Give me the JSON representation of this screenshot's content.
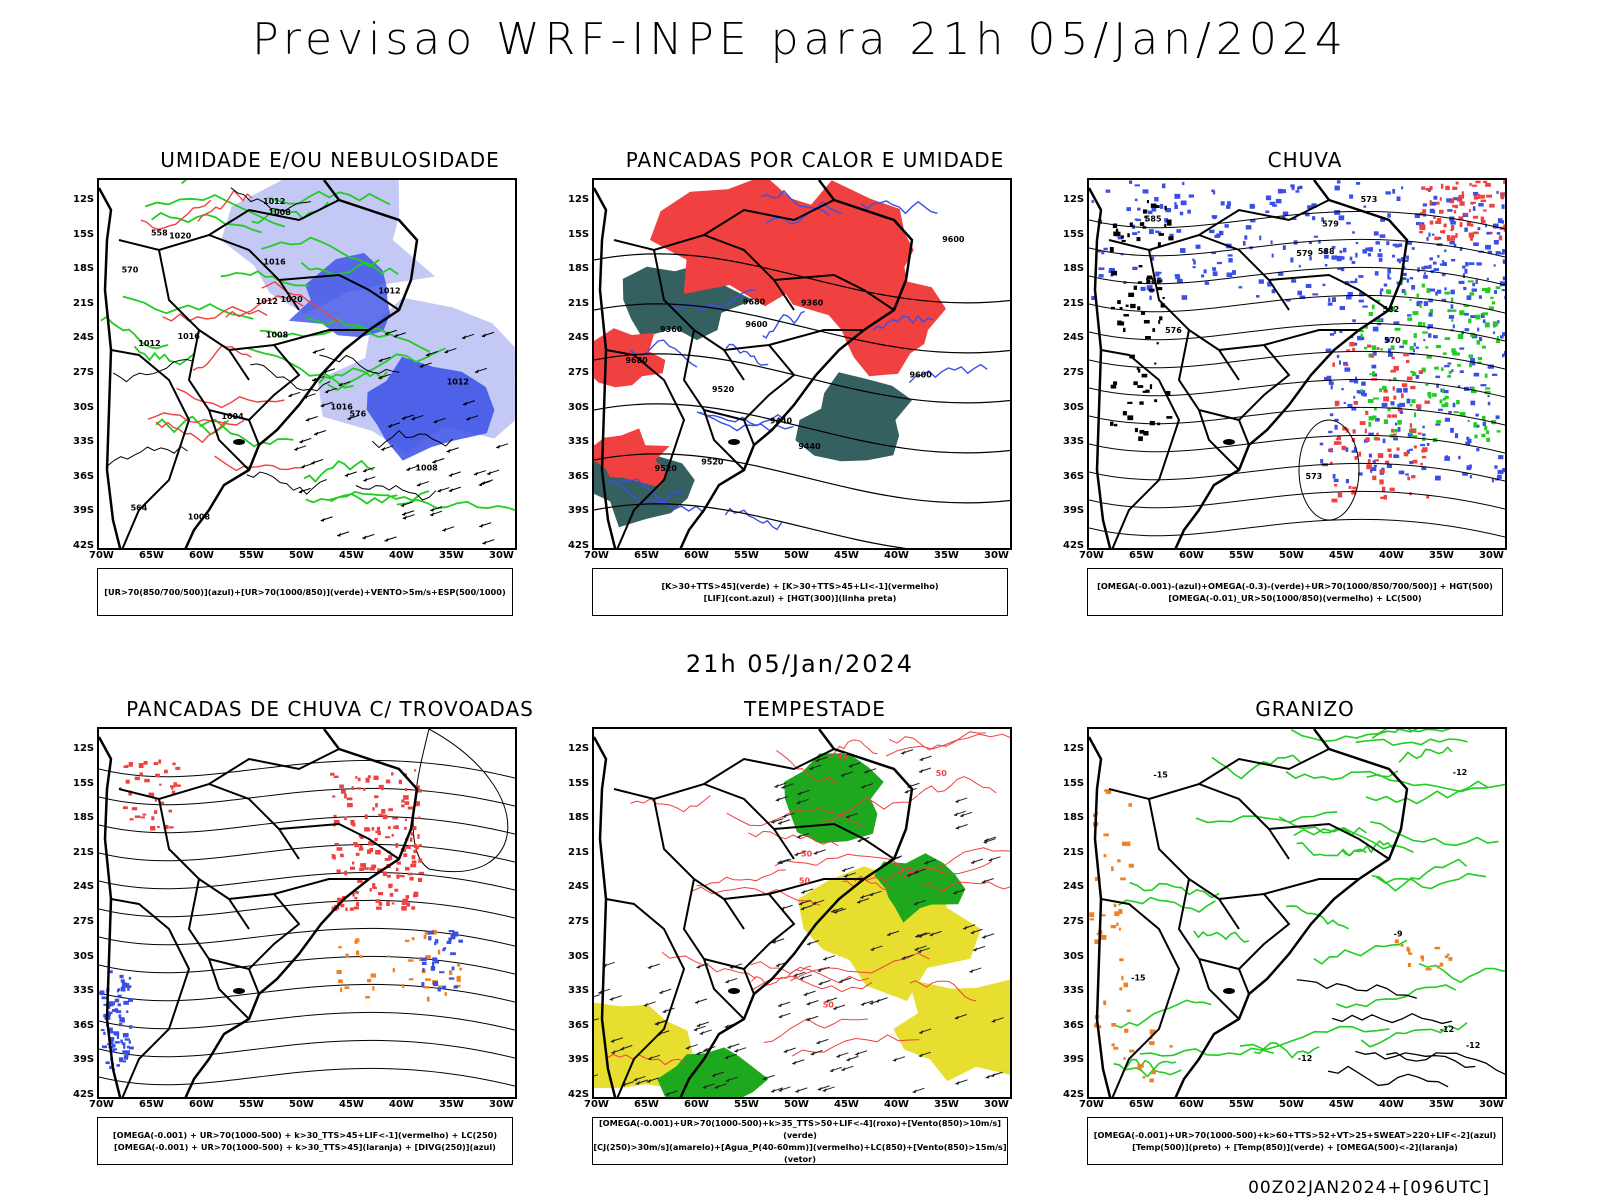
{
  "main_title": "Previsao WRF-INPE  para 21h 05/Jan/2024",
  "mid_title": "21h 05/Jan/2024",
  "footer": "00Z02JAN2024+[096UTC]",
  "lat_labels": [
    "12S",
    "15S",
    "18S",
    "21S",
    "24S",
    "27S",
    "30S",
    "33S",
    "36S",
    "39S",
    "42S"
  ],
  "lon_labels": [
    "70W",
    "65W",
    "60W",
    "55W",
    "50W",
    "45W",
    "40W",
    "35W",
    "30W"
  ],
  "colors": {
    "blue": "#3a4fe6",
    "light_blue": "#aab0f0",
    "green": "#22cc22",
    "red": "#f04040",
    "dark_teal": "#1f4f4f",
    "yellow": "#e8de30",
    "orange": "#f08020",
    "black": "#000000"
  },
  "panels": [
    {
      "id": "umidade",
      "title": "UMIDADE E/OU NEBULOSIDADE",
      "legend": [
        "[UR>70(850/700/500)](azul)+[UR>70(1000/850)](verde)+VENTO>5m/s+ESP(500/1000)"
      ],
      "contour_labels": [
        "1012",
        "1012",
        "1008",
        "1008",
        "1012",
        "1016",
        "1020",
        "1008",
        "1004",
        "1008",
        "1012",
        "1016",
        "1012",
        "1020",
        "1016",
        "570",
        "576",
        "564",
        "558"
      ]
    },
    {
      "id": "pancadas_calor",
      "title": "PANCADAS POR CALOR E UMIDADE",
      "legend": [
        "[K>30+TTS>45](verde) + [K>30+TTS>45+LI<-1](vermelho)",
        "[LIF](cont.azul) + [HGT(300)](linha preta)"
      ],
      "contour_labels": [
        "9680",
        "9680",
        "9600",
        "9600",
        "9600",
        "9520",
        "9520",
        "9440",
        "9360",
        "9360",
        "9440",
        "9520"
      ]
    },
    {
      "id": "chuva",
      "title": "CHUVA",
      "legend": [
        "[OMEGA(-0.001)-(azul)+OMEGA(-0.3)-(verde)+UR>70(1000/850/700/500)] + HGT(500)",
        "[OMEGA(-0.01)_UR>50(1000/850)(vermelho) + LC(500)"
      ],
      "contour_labels": [
        "585",
        "588",
        "582",
        "579",
        "576",
        "573",
        "570",
        "573",
        "579",
        "585"
      ]
    },
    {
      "id": "trovoadas",
      "title": "PANCADAS DE CHUVA C/ TROVOADAS",
      "legend": [
        "[OMEGA(-0.001) + UR>70(1000-500) + k>30_TTS>45+LIF<-1](vermelho) + LC(250)",
        "[OMEGA(-0.001) + UR>70(1000-500) + k>30_TTS>45](laranja) + [DIVG(250)](azul)"
      ],
      "contour_labels": []
    },
    {
      "id": "tempestade",
      "title": "TEMPESTADE",
      "legend": [
        "[OMEGA(-0.001)+UR>70(1000-500)+k>35_TTS>50+LIF<-4](roxo)+[Vento(850)>10m/s](verde)",
        "[CJ(250)>30m/s](amarelo)+[Agua_P(40-60mm)](vermelho)+LC(850)+[Vento(850)>15m/s](vetor)"
      ],
      "contour_labels": [
        "50",
        "50",
        "50",
        "50",
        "45"
      ]
    },
    {
      "id": "granizo",
      "title": "GRANIZO",
      "legend": [
        "[OMEGA(-0.001)+UR>70(1000-500)+k>60+TTS>52+VT>25+SWEAT>220+LIF<-2](azul)",
        "[Temp(500)](preto) + [Temp(850)](verde) + [OMEGA(500)<-2](laranja)"
      ],
      "contour_labels": [
        "-12",
        "-12",
        "-15",
        "-12",
        "-12",
        "-15",
        "-9"
      ]
    }
  ]
}
